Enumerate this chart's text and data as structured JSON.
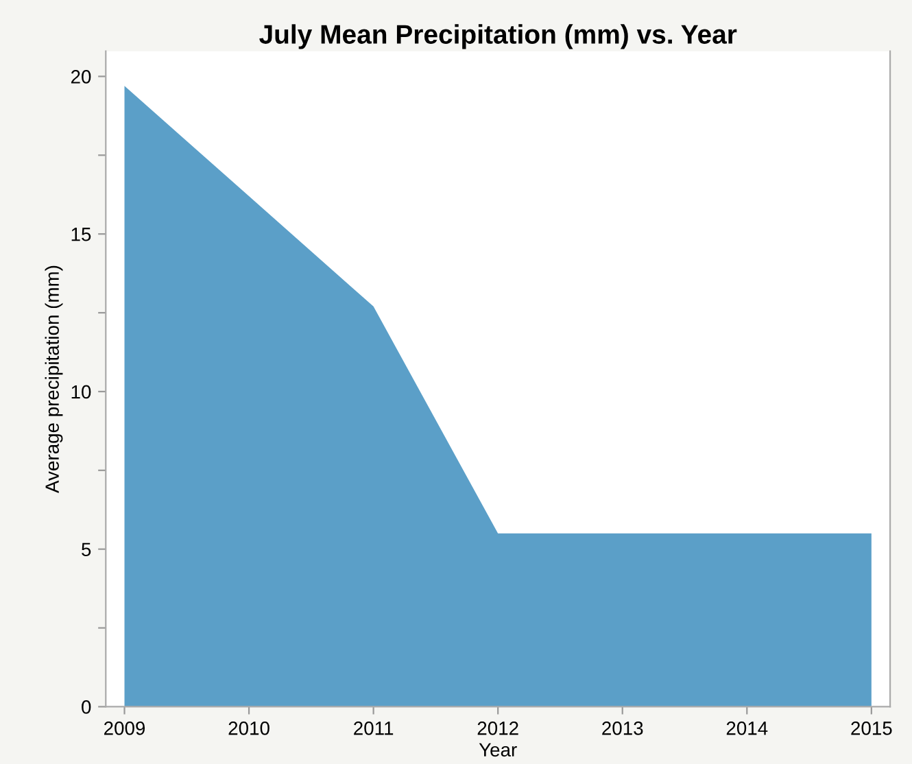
{
  "chart_data": {
    "type": "area",
    "title": "July Mean Precipitation (mm) vs. Year",
    "xlabel": "Year",
    "ylabel": "Average precipitation (mm)",
    "x": [
      2009,
      2010,
      2011,
      2012,
      2013,
      2014,
      2015
    ],
    "series": [
      {
        "color": "#5b9fc8",
        "values": [
          19.7,
          16.2,
          12.7,
          5.5,
          5.5,
          5.5,
          5.5
        ]
      }
    ],
    "xlim": [
      2008.85,
      2015.15
    ],
    "ylim": [
      0,
      20.8
    ],
    "xticks": [
      2009,
      2010,
      2011,
      2012,
      2013,
      2014,
      2015
    ],
    "yticks": [
      0,
      {
        "value": 2.5,
        "label": null
      },
      5,
      {
        "value": 7.5,
        "label": null
      },
      10,
      {
        "value": 12.5,
        "label": null
      },
      15,
      {
        "value": 17.5,
        "label": null
      },
      20
    ],
    "grid": false,
    "legend": false
  }
}
